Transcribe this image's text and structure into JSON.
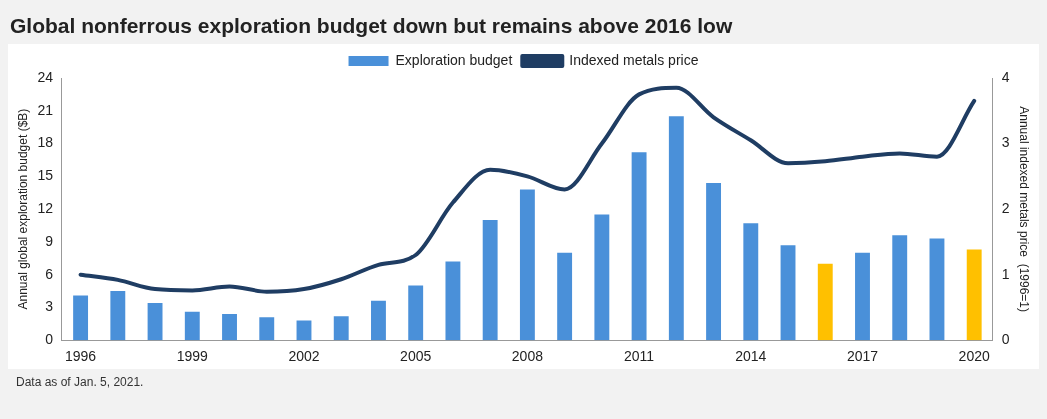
{
  "chart_data": {
    "type": "bar",
    "title": "Global nonferrous exploration budget down but remains above 2016 low",
    "categories": [
      "1996",
      null,
      null,
      "1999",
      null,
      null,
      "2002",
      null,
      null,
      "2005",
      null,
      null,
      "2008",
      null,
      null,
      "2011",
      null,
      null,
      "2014",
      null,
      null,
      "2017",
      null,
      null,
      "2020"
    ],
    "series": [
      {
        "name": "Exploration budget",
        "color": "#4a90d9",
        "colors": [
          "#4a90d9",
          "#4a90d9",
          "#4a90d9",
          "#4a90d9",
          "#4a90d9",
          "#4a90d9",
          "#4a90d9",
          "#4a90d9",
          "#4a90d9",
          "#4a90d9",
          "#4a90d9",
          "#4a90d9",
          "#4a90d9",
          "#4a90d9",
          "#4a90d9",
          "#4a90d9",
          "#4a90d9",
          "#4a90d9",
          "#4a90d9",
          "#4a90d9",
          "#ffc000",
          "#4a90d9",
          "#4a90d9",
          "#4a90d9",
          "#ffc000"
        ],
        "values": [
          4.1,
          4.5,
          3.4,
          2.6,
          2.4,
          2.1,
          1.8,
          2.2,
          3.6,
          5.0,
          7.2,
          11.0,
          13.8,
          8.0,
          11.5,
          17.2,
          20.5,
          14.4,
          10.7,
          8.7,
          7.0,
          8.0,
          9.6,
          9.3,
          8.3
        ]
      },
      {
        "name": "Indexed metals price",
        "type": "line",
        "axis": "y2",
        "color": "#1f3d63",
        "values": [
          1.0,
          0.92,
          0.78,
          0.76,
          0.82,
          0.74,
          0.78,
          0.93,
          1.15,
          1.3,
          2.1,
          2.6,
          2.5,
          2.3,
          3.0,
          3.75,
          3.85,
          3.4,
          3.05,
          2.7,
          2.73,
          2.8,
          2.85,
          2.8,
          3.65
        ]
      }
    ],
    "ylabel": "Annual global exploration budget ($B)",
    "y2label": "Annual indexed metals price  (1996=1)",
    "ylim": [
      0,
      24
    ],
    "yticks": [
      0,
      3,
      6,
      9,
      12,
      15,
      18,
      21,
      24
    ],
    "y2lim": [
      0,
      4
    ],
    "y2ticks": [
      0,
      1,
      2,
      3,
      4
    ],
    "legend": "top",
    "grid": false,
    "marker": "none",
    "annotations": [
      "Data as of Jan. 5, 2021."
    ]
  }
}
